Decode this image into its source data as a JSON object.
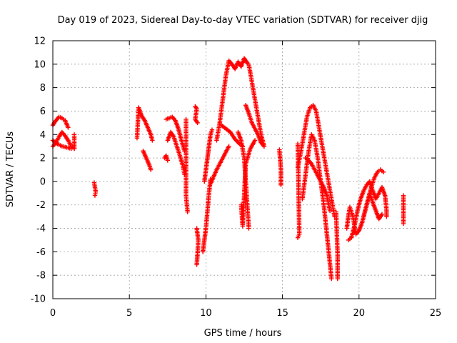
{
  "chart_data": {
    "type": "scatter",
    "title": "Day 019 of 2023, Sidereal Day-to-day VTEC variation (SDTVAR) for receiver djig",
    "xlabel": "GPS time / hours",
    "ylabel": "SDTVAR / TECUs",
    "xlim": [
      0,
      25
    ],
    "ylim": [
      -10,
      12
    ],
    "xticks": [
      "0",
      "5",
      "10",
      "15",
      "20",
      "25"
    ],
    "yticks": [
      "-10",
      "-8",
      "-6",
      "-4",
      "-2",
      "0",
      "2",
      "4",
      "6",
      "8",
      "10",
      "12"
    ],
    "grid": true,
    "marker": "+",
    "marker_color": "#ff0000",
    "series": [
      {
        "name": "SDTVAR",
        "segments": [
          [
            [
              0.0,
              3.0
            ],
            [
              0.2,
              3.3
            ],
            [
              0.4,
              3.8
            ],
            [
              0.6,
              4.2
            ],
            [
              0.8,
              3.9
            ],
            [
              1.0,
              3.5
            ],
            [
              1.2,
              3.0
            ],
            [
              1.4,
              2.8
            ]
          ],
          [
            [
              0.0,
              4.8
            ],
            [
              0.2,
              5.2
            ],
            [
              0.4,
              5.5
            ],
            [
              0.6,
              5.4
            ],
            [
              0.8,
              5.2
            ],
            [
              1.0,
              4.6
            ]
          ],
          [
            [
              0.0,
              3.5
            ],
            [
              0.3,
              3.2
            ],
            [
              0.6,
              3.0
            ],
            [
              0.9,
              2.9
            ],
            [
              1.2,
              2.8
            ]
          ],
          [
            [
              1.4,
              4.0
            ],
            [
              1.4,
              3.3
            ],
            [
              1.4,
              2.8
            ]
          ],
          [
            [
              2.7,
              -0.1
            ],
            [
              2.75,
              -0.5
            ],
            [
              2.8,
              -0.9
            ],
            [
              2.75,
              -1.2
            ]
          ],
          [
            [
              5.5,
              3.7
            ],
            [
              5.6,
              6.3
            ],
            [
              5.8,
              5.6
            ],
            [
              6.0,
              5.2
            ],
            [
              6.2,
              4.6
            ],
            [
              6.4,
              4.0
            ],
            [
              6.5,
              3.5
            ]
          ],
          [
            [
              5.9,
              2.6
            ],
            [
              6.1,
              2.0
            ],
            [
              6.3,
              1.4
            ],
            [
              6.4,
              1.0
            ]
          ],
          [
            [
              7.4,
              5.3
            ],
            [
              7.6,
              5.4
            ],
            [
              7.8,
              5.5
            ],
            [
              8.0,
              5.2
            ],
            [
              8.2,
              4.5
            ],
            [
              8.4,
              3.5
            ],
            [
              8.6,
              2.6
            ]
          ],
          [
            [
              7.5,
              3.5
            ],
            [
              7.7,
              4.2
            ],
            [
              7.9,
              3.8
            ],
            [
              8.1,
              3.0
            ],
            [
              8.3,
              2.2
            ],
            [
              8.5,
              1.3
            ],
            [
              8.6,
              0.6
            ]
          ],
          [
            [
              7.3,
              2.0
            ],
            [
              7.4,
              2.2
            ],
            [
              7.5,
              1.8
            ]
          ],
          [
            [
              8.7,
              5.3
            ],
            [
              8.7,
              3.9
            ],
            [
              8.7,
              -1.2
            ],
            [
              8.8,
              -2.6
            ]
          ],
          [
            [
              9.3,
              6.4
            ],
            [
              9.4,
              6.2
            ],
            [
              9.3,
              5.3
            ],
            [
              9.45,
              5.0
            ]
          ],
          [
            [
              9.4,
              -4.0
            ],
            [
              9.5,
              -5.0
            ],
            [
              9.45,
              -6.2
            ],
            [
              9.4,
              -7.1
            ]
          ],
          [
            [
              9.8,
              -6.0
            ],
            [
              9.9,
              -5.0
            ],
            [
              10.0,
              -4.0
            ],
            [
              10.1,
              -2.5
            ],
            [
              10.2,
              -1.0
            ],
            [
              10.3,
              0.2
            ]
          ],
          [
            [
              9.9,
              0.0
            ],
            [
              10.0,
              1.0
            ],
            [
              10.1,
              2.0
            ],
            [
              10.2,
              3.0
            ],
            [
              10.3,
              4.0
            ],
            [
              10.4,
              4.4
            ]
          ],
          [
            [
              10.3,
              -0.2
            ],
            [
              10.5,
              0.4
            ],
            [
              10.7,
              1.0
            ],
            [
              10.9,
              1.5
            ],
            [
              11.1,
              2.0
            ],
            [
              11.3,
              2.5
            ],
            [
              11.5,
              3.0
            ]
          ],
          [
            [
              10.7,
              3.5
            ],
            [
              10.9,
              5.0
            ],
            [
              11.1,
              7.0
            ],
            [
              11.3,
              9.0
            ],
            [
              11.5,
              10.3
            ],
            [
              11.7,
              10.0
            ],
            [
              11.9,
              9.6
            ],
            [
              12.1,
              10.2
            ],
            [
              12.3,
              9.8
            ],
            [
              12.5,
              10.5
            ],
            [
              12.7,
              10.1
            ]
          ],
          [
            [
              11.0,
              4.8
            ],
            [
              11.3,
              4.5
            ],
            [
              11.6,
              4.2
            ],
            [
              11.9,
              3.6
            ],
            [
              12.2,
              3.2
            ],
            [
              12.4,
              3.0
            ]
          ],
          [
            [
              12.1,
              4.2
            ],
            [
              12.3,
              3.5
            ],
            [
              12.5,
              2.0
            ],
            [
              12.6,
              0.0
            ],
            [
              12.7,
              -2.0
            ],
            [
              12.8,
              -4.0
            ]
          ],
          [
            [
              12.6,
              6.5
            ],
            [
              12.8,
              5.8
            ],
            [
              13.0,
              5.0
            ],
            [
              13.2,
              4.5
            ],
            [
              13.4,
              4.0
            ],
            [
              13.6,
              3.3
            ],
            [
              13.8,
              3.0
            ]
          ],
          [
            [
              12.8,
              10.0
            ],
            [
              13.0,
              8.5
            ],
            [
              13.2,
              7.0
            ],
            [
              13.4,
              5.5
            ],
            [
              13.6,
              4.0
            ],
            [
              13.8,
              3.0
            ]
          ],
          [
            [
              12.3,
              -2.0
            ],
            [
              12.4,
              -3.8
            ],
            [
              12.6,
              1.5
            ],
            [
              12.9,
              2.8
            ],
            [
              13.2,
              3.5
            ]
          ],
          [
            [
              14.8,
              2.7
            ],
            [
              14.9,
              1.0
            ],
            [
              14.9,
              0.2
            ],
            [
              14.9,
              -0.3
            ]
          ],
          [
            [
              16.0,
              3.2
            ],
            [
              16.1,
              -4.5
            ],
            [
              16.0,
              -4.8
            ]
          ],
          [
            [
              16.0,
              1.2
            ],
            [
              16.2,
              2.5
            ],
            [
              16.4,
              4.0
            ],
            [
              16.6,
              5.5
            ],
            [
              16.8,
              6.3
            ],
            [
              17.0,
              6.5
            ],
            [
              17.2,
              6.0
            ],
            [
              17.4,
              4.5
            ],
            [
              17.6,
              3.0
            ],
            [
              17.8,
              1.5
            ],
            [
              18.0,
              0.0
            ],
            [
              18.2,
              -1.5
            ],
            [
              18.4,
              -3.0
            ]
          ],
          [
            [
              16.3,
              -1.5
            ],
            [
              16.5,
              0.5
            ],
            [
              16.7,
              2.5
            ],
            [
              16.9,
              4.0
            ],
            [
              17.1,
              3.5
            ],
            [
              17.3,
              2.0
            ],
            [
              17.5,
              0.0
            ],
            [
              17.7,
              -2.0
            ],
            [
              17.9,
              -4.5
            ],
            [
              18.1,
              -7.0
            ],
            [
              18.2,
              -8.3
            ]
          ],
          [
            [
              16.5,
              2.0
            ],
            [
              16.7,
              1.8
            ],
            [
              16.9,
              1.5
            ],
            [
              17.1,
              1.0
            ],
            [
              17.3,
              0.5
            ],
            [
              17.5,
              0.0
            ],
            [
              17.7,
              -0.5
            ],
            [
              17.9,
              -1.2
            ],
            [
              18.1,
              -2.5
            ]
          ],
          [
            [
              18.6,
              -8.3
            ],
            [
              18.6,
              -6.2
            ],
            [
              18.5,
              -2.6
            ]
          ],
          [
            [
              19.2,
              -4.0
            ],
            [
              19.3,
              -3.0
            ],
            [
              19.4,
              -2.2
            ],
            [
              19.6,
              -3.0
            ],
            [
              19.8,
              -4.5
            ],
            [
              20.0,
              -4.2
            ],
            [
              20.2,
              -3.5
            ],
            [
              20.4,
              -2.5
            ],
            [
              20.6,
              -1.5
            ],
            [
              20.8,
              -0.5
            ],
            [
              21.0,
              0.3
            ],
            [
              21.2,
              0.8
            ],
            [
              21.4,
              1.0
            ],
            [
              21.6,
              0.8
            ]
          ],
          [
            [
              19.3,
              -5.0
            ],
            [
              19.5,
              -4.8
            ],
            [
              19.7,
              -3.8
            ],
            [
              19.9,
              -2.5
            ],
            [
              20.1,
              -1.5
            ],
            [
              20.3,
              -0.8
            ],
            [
              20.5,
              -0.3
            ],
            [
              20.7,
              0.0
            ],
            [
              20.9,
              -0.8
            ],
            [
              21.1,
              -1.5
            ],
            [
              21.3,
              -1.0
            ],
            [
              21.5,
              -0.5
            ],
            [
              21.7,
              -1.2
            ],
            [
              21.8,
              -2.5
            ],
            [
              21.8,
              -3.0
            ]
          ],
          [
            [
              20.3,
              -3.0
            ],
            [
              20.5,
              -2.0
            ],
            [
              20.7,
              -1.0
            ],
            [
              20.9,
              -1.8
            ],
            [
              21.1,
              -2.5
            ],
            [
              21.3,
              -3.2
            ],
            [
              21.5,
              -2.8
            ]
          ],
          [
            [
              22.9,
              -1.2
            ],
            [
              22.9,
              -2.4
            ],
            [
              22.9,
              -3.6
            ]
          ]
        ]
      }
    ]
  }
}
